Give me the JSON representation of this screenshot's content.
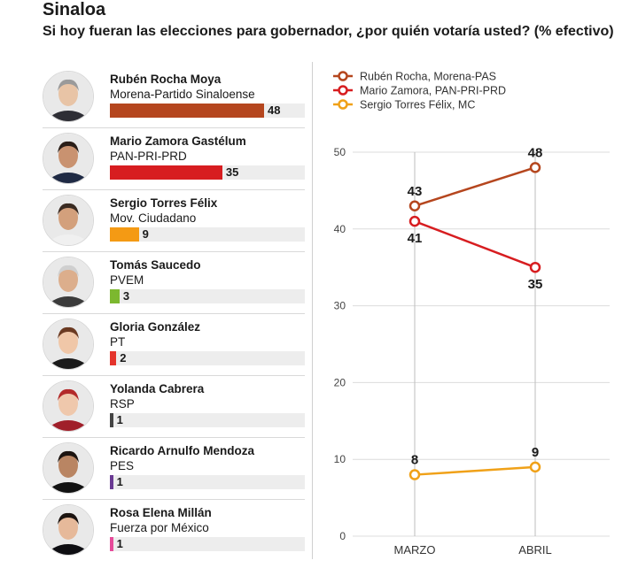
{
  "header": {
    "title": "Sinaloa",
    "subtitle": "Si hoy fueran las elecciones para gobernador, ¿por quién votaría usted? (% efectivo)"
  },
  "candidates": [
    {
      "name": "Rubén Rocha Moya",
      "party": "Morena-Partido Sinaloense",
      "value": 48,
      "label": "48",
      "color": "#b5461e",
      "skin": "#e8c4a6",
      "hair": "#9a9a9a",
      "suit": "#2e2e35"
    },
    {
      "name": "Mario Zamora Gastélum",
      "party": "PAN-PRI-PRD",
      "value": 35,
      "label": "35",
      "color": "#d71d20",
      "skin": "#c99270",
      "hair": "#2a1e18",
      "suit": "#1f2a44"
    },
    {
      "name": "Sergio Torres Félix",
      "party": "Mov. Ciudadano",
      "value": 9,
      "label": "9",
      "color": "#f49a14",
      "skin": "#d3a07c",
      "hair": "#3a2b22",
      "suit": "#f0f0f0"
    },
    {
      "name": "Tomás Saucedo",
      "party": "PVEM",
      "value": 3,
      "label": "3",
      "color": "#7cb82f",
      "skin": "#dcae8c",
      "hair": "#cfcfcf",
      "suit": "#3b3b3b"
    },
    {
      "name": "Gloria González",
      "party": "PT",
      "value": 2,
      "label": "2",
      "color": "#e4332b",
      "skin": "#f0c7a8",
      "hair": "#6b3a22",
      "suit": "#1a1a1a"
    },
    {
      "name": "Yolanda Cabrera",
      "party": "RSP",
      "value": 1,
      "label": "1",
      "color": "#444444",
      "skin": "#efc8ac",
      "hair": "#b32a2a",
      "suit": "#a01f2a"
    },
    {
      "name": "Ricardo Arnulfo Mendoza",
      "party": "PES",
      "value": 1,
      "label": "1",
      "color": "#6a3a93",
      "skin": "#b98563",
      "hair": "#1c1410",
      "suit": "#121212"
    },
    {
      "name": "Rosa Elena Millán",
      "party": "Fuerza por México",
      "value": 1,
      "label": "1",
      "color": "#e64b9a",
      "skin": "#e6b99a",
      "hair": "#1c1410",
      "suit": "#0e0e12"
    }
  ],
  "chart_data": {
    "type": "line",
    "x": [
      "MARZO",
      "ABRIL"
    ],
    "ylim": [
      0,
      50
    ],
    "yticks": [
      0,
      10,
      20,
      30,
      40,
      50
    ],
    "ytick_labels": [
      "0",
      "10",
      "20",
      "30",
      "40",
      "50"
    ],
    "series": [
      {
        "name": "Rubén Rocha, Morena-PAS",
        "values": [
          43,
          48
        ],
        "labels": [
          "43",
          "48"
        ],
        "color": "#b5461e"
      },
      {
        "name": "Mario Zamora, PAN-PRI-PRD",
        "values": [
          41,
          35
        ],
        "labels": [
          "41",
          "35"
        ],
        "color": "#d71d20"
      },
      {
        "name": "Sergio Torres Félix, MC",
        "values": [
          8,
          9
        ],
        "labels": [
          "8",
          "9"
        ],
        "color": "#f0a118"
      }
    ],
    "legend_position": "top-left"
  }
}
